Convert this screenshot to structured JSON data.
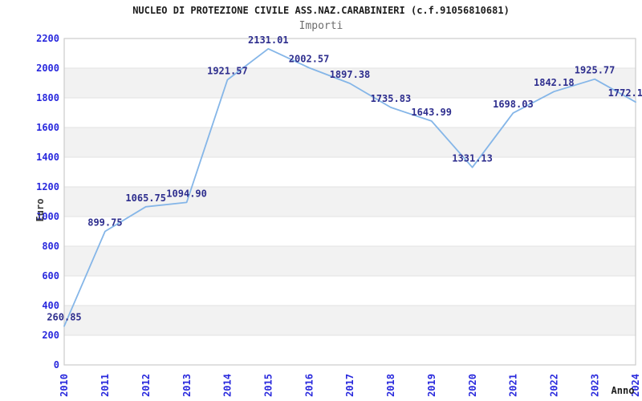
{
  "header": {
    "title": "NUCLEO DI PROTEZIONE CIVILE ASS.NAZ.CARABINIERI (c.f.91056810681)",
    "subtitle": "Importi"
  },
  "axes": {
    "y_label": "Euro",
    "x_label": "Anno"
  },
  "colors": {
    "line_blue": "#85b6e8",
    "tick_blue": "#2929dd",
    "point_label_navy": "#2e2e8e",
    "band_gray": "#f2f2f2",
    "grid_line": "#e2e2e2",
    "plot_border": "#cccccc",
    "title_color": "#1c1c1c",
    "subtitle_color": "#6e6e6e",
    "axis_label_color": "#3a3a3a"
  },
  "chart_data": {
    "type": "line",
    "title": "NUCLEO DI PROTEZIONE CIVILE ASS.NAZ.CARABINIERI (c.f.91056810681)",
    "subtitle": "Importi",
    "xlabel": "Anno",
    "ylabel": "Euro",
    "x": [
      2010,
      2011,
      2012,
      2013,
      2014,
      2015,
      2016,
      2017,
      2018,
      2019,
      2020,
      2021,
      2022,
      2023,
      2024
    ],
    "values": [
      260.85,
      899.75,
      1065.75,
      1094.9,
      1921.57,
      2131.01,
      2002.57,
      1897.38,
      1735.83,
      1643.99,
      1331.13,
      1698.03,
      1842.18,
      1925.77,
      1772.1
    ],
    "point_labels": [
      "260.85",
      "899.75",
      "1065.75",
      "1094.90",
      "1921.57",
      "2131.01",
      "2002.57",
      "1897.38",
      "1735.83",
      "1643.99",
      "1331.13",
      "1698.03",
      "1842.18",
      "1925.77",
      "1772.1"
    ],
    "ylim": [
      0,
      2200
    ],
    "yticks": [
      0,
      200,
      400,
      600,
      800,
      1000,
      1200,
      1400,
      1600,
      1800,
      2000,
      2200
    ],
    "grid": "alternating-horizontal-bands",
    "legend": "none",
    "markers": "none"
  }
}
